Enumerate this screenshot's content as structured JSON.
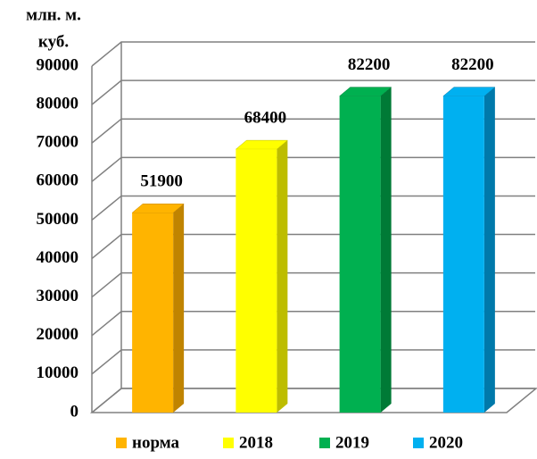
{
  "chart_data": {
    "type": "bar3d",
    "ylabel": [
      "млн. м.",
      "куб."
    ],
    "series": [
      {
        "name": "норма",
        "color": "#FFB400",
        "side": "#C08400",
        "values": [
          51900
        ]
      },
      {
        "name": "2018",
        "color": "#FFFF00",
        "side": "#BDBD00",
        "values": [
          68400
        ]
      },
      {
        "name": "2019",
        "color": "#00B050",
        "side": "#007A36",
        "values": [
          82200
        ]
      },
      {
        "name": "2020",
        "color": "#00B0F0",
        "side": "#0079AA",
        "values": [
          82200
        ]
      }
    ],
    "ylim": [
      0,
      90000
    ],
    "yticks": [
      0,
      10000,
      20000,
      30000,
      40000,
      50000,
      60000,
      70000,
      80000,
      90000
    ],
    "grid": true,
    "legend": "bottom"
  }
}
